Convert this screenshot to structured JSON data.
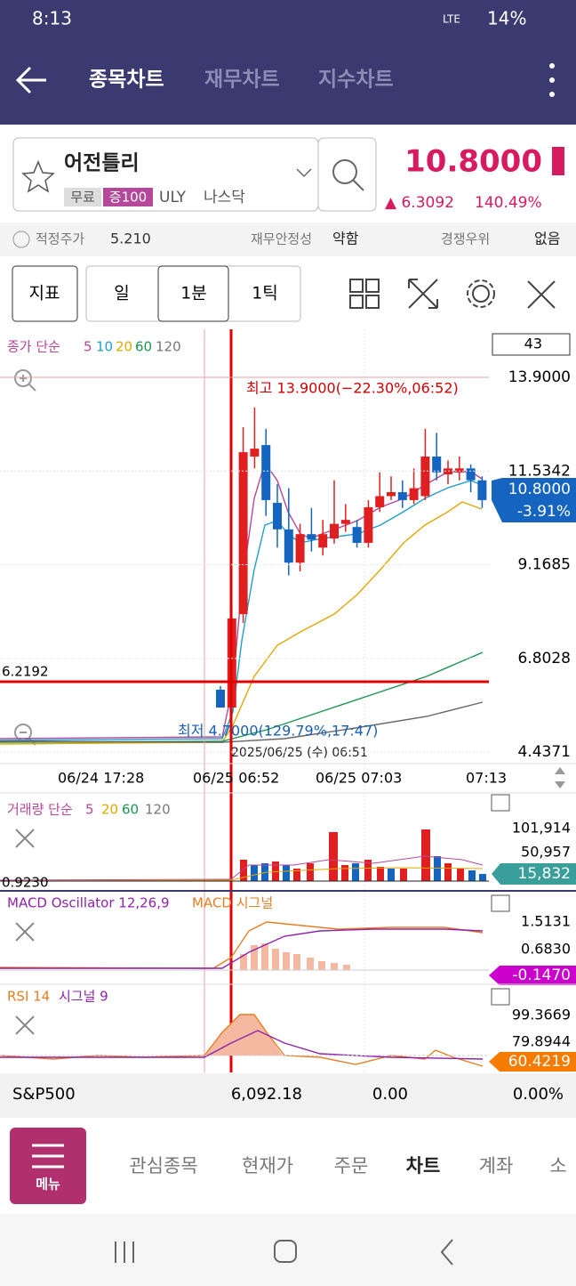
{
  "status": {
    "time": "8:13",
    "network": "LTE",
    "battery": "14%"
  },
  "tabs": [
    "종목차트",
    "재무차트",
    "지수차트"
  ],
  "stock": {
    "name": "어전틀리",
    "badge_free": "무료",
    "badge_margin": "증100",
    "ticker": "ULY",
    "market": "나스닥",
    "price": "10.8000",
    "change": "▲ 6.3092",
    "change_pct": "140.49%"
  },
  "info": {
    "fair_label": "적정주가",
    "fair_value": "5.210",
    "fin_label": "재무안정성",
    "fin_value": "약함",
    "comp_label": "경쟁우위",
    "comp_value": "없음"
  },
  "toolbar": [
    "지표",
    "일",
    "1분",
    "1틱"
  ],
  "price_chart": {
    "legend": "종가 단순",
    "ma_periods": [
      "5",
      "10",
      "20",
      "60",
      "120"
    ],
    "count": "43",
    "ylim": [
      4.4371,
      13.9
    ],
    "yticks": [
      {
        "value": 13.9,
        "label": "13.9000"
      },
      {
        "value": 11.5342,
        "label": "11.5342"
      },
      {
        "value": 9.1685,
        "label": "9.1685"
      },
      {
        "value": 6.8028,
        "label": "6.8028"
      },
      {
        "value": 4.4371,
        "label": "4.4371"
      }
    ],
    "high_note": "최고 13.9000(−22.30%,06:52)",
    "low_note": "최저 4.7000(129.79%,17:47)",
    "crosshair_time": "2025/06/25 (수) 06:51",
    "crosshair_price": "6.2192",
    "current_price": "10.8000",
    "current_pct": "-3.91%",
    "x_labels": [
      "06/24 17:28",
      "06/25 06:52",
      "06/25 07:03",
      "07:13"
    ],
    "candles": [
      {
        "open": 6.01,
        "high": 6.1,
        "low": 5.56,
        "close": 5.56
      },
      {
        "open": 5.56,
        "high": 8.15,
        "low": 5.45,
        "close": 7.81
      },
      {
        "open": 7.92,
        "high": 12.64,
        "low": 7.7,
        "close": 12.01
      },
      {
        "open": 11.9,
        "high": 13.14,
        "low": 11.6,
        "close": 12.1
      },
      {
        "open": 12.19,
        "high": 12.6,
        "low": 10.4,
        "close": 10.8
      },
      {
        "open": 10.73,
        "high": 11.2,
        "low": 9.6,
        "close": 10.06
      },
      {
        "open": 10.06,
        "high": 11.1,
        "low": 8.9,
        "close": 9.22
      },
      {
        "open": 9.22,
        "high": 10.2,
        "low": 9.0,
        "close": 9.94
      },
      {
        "open": 9.94,
        "high": 10.6,
        "low": 9.5,
        "close": 9.8
      },
      {
        "open": 9.6,
        "high": 10.3,
        "low": 9.4,
        "close": 9.94
      },
      {
        "open": 9.83,
        "high": 11.3,
        "low": 9.7,
        "close": 10.2
      },
      {
        "open": 10.2,
        "high": 10.7,
        "low": 10.0,
        "close": 10.3
      },
      {
        "open": 10.12,
        "high": 10.3,
        "low": 9.6,
        "close": 9.72
      },
      {
        "open": 9.72,
        "high": 10.8,
        "low": 9.6,
        "close": 10.62
      },
      {
        "open": 10.62,
        "high": 11.5,
        "low": 10.5,
        "close": 10.9
      },
      {
        "open": 10.9,
        "high": 11.4,
        "low": 10.8,
        "close": 11.0
      },
      {
        "open": 11.0,
        "high": 11.3,
        "low": 10.6,
        "close": 10.8
      },
      {
        "open": 10.8,
        "high": 11.6,
        "low": 10.7,
        "close": 11.1
      },
      {
        "open": 10.9,
        "high": 12.6,
        "low": 10.8,
        "close": 11.9
      },
      {
        "open": 11.9,
        "high": 12.5,
        "low": 11.3,
        "close": 11.5
      },
      {
        "open": 11.45,
        "high": 11.8,
        "low": 11.2,
        "close": 11.6
      },
      {
        "open": 11.5,
        "high": 11.9,
        "low": 11.3,
        "close": 11.6
      },
      {
        "open": 11.6,
        "high": 11.7,
        "low": 11.0,
        "close": 11.3
      },
      {
        "open": 11.3,
        "high": 11.4,
        "low": 10.6,
        "close": 10.8
      }
    ]
  },
  "volume": {
    "legend": "거래량 단순",
    "ma_periods": [
      "5",
      "20",
      "60",
      "120"
    ],
    "tick_high": "101,914",
    "tick_mid": "50,957",
    "current": "15,832",
    "left_value": "0.9230"
  },
  "macd": {
    "title": "MACD Oscillator 12,26,9",
    "signal": "MACD 시그널",
    "tick_high": "1.5131",
    "tick_mid": "0.6830",
    "current": "-0.1470"
  },
  "rsi": {
    "title": "RSI 14",
    "signal": "시그널 9",
    "tick_high": "99.3669",
    "tick_mid": "79.8944",
    "current": "60.4219"
  },
  "index_bar": {
    "name": "S&P500",
    "value": "6,092.18",
    "change": "0.00",
    "change_pct": "0.00%"
  },
  "bottom_nav": {
    "menu": "메뉴",
    "items": [
      "관심종목",
      "현재가",
      "주문",
      "차트",
      "계좌",
      "소"
    ]
  }
}
